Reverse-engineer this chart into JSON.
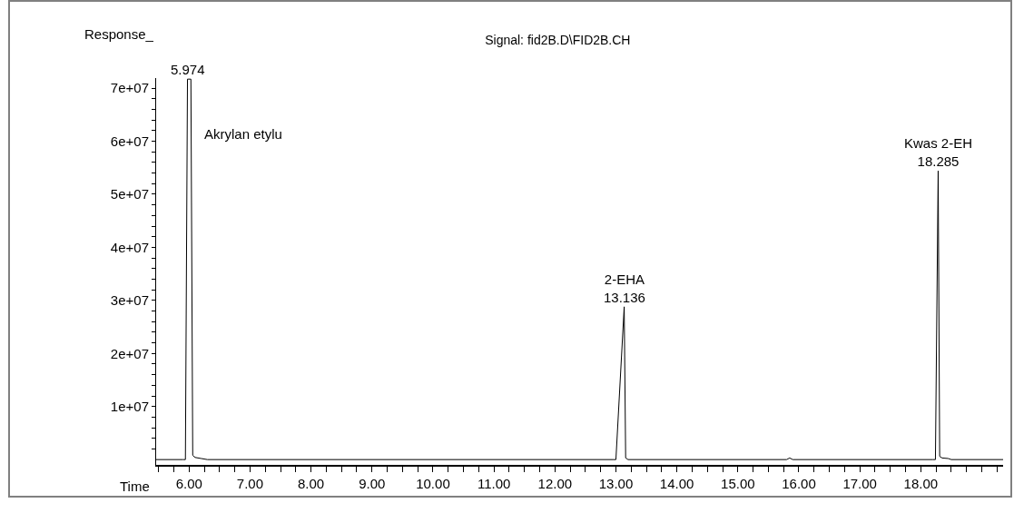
{
  "chart_data": {
    "type": "line",
    "title": "Signal: fid2B.D\\FID2B.CH",
    "ylabel": "Response_",
    "xlabel": "Time",
    "series": [
      {
        "color": "#000000",
        "x": [
          5.46,
          5.9,
          5.94,
          5.974,
          6.03,
          6.06,
          6.1,
          6.2,
          6.3,
          12.95,
          13.0,
          13.136,
          13.16,
          13.2,
          15.8,
          15.85,
          15.9,
          18.2,
          18.24,
          18.285,
          18.31,
          18.35,
          18.45,
          18.5,
          19.35
        ],
        "values": [
          0,
          0,
          0,
          71700000,
          71700000,
          800000,
          400000,
          200000,
          0,
          0,
          0,
          28800000,
          300000,
          0,
          0,
          300000,
          0,
          0,
          0,
          54400000,
          600000,
          300000,
          200000,
          0,
          0
        ]
      }
    ],
    "annotations": [
      {
        "text": "5.974",
        "x": 5.974,
        "y": 71700000
      },
      "Akrylan etylu",
      {
        "text": "2-EHA\n13.136",
        "x": 13.136,
        "y": 28800000
      },
      {
        "text": "Kwas 2-EH\n18.285",
        "x": 18.285,
        "y": 54400000
      }
    ],
    "xlim": [
      5.46,
      19.35
    ],
    "ylim": [
      -1000000,
      71900000
    ],
    "xticks": [
      {
        "value": 5.5,
        "label": null
      },
      {
        "value": 5.75,
        "label": null
      },
      {
        "value": 6,
        "label": "6.00"
      },
      {
        "value": 6.25,
        "label": null
      },
      {
        "value": 6.5,
        "label": null
      },
      {
        "value": 6.75,
        "label": null
      },
      {
        "value": 7,
        "label": "7.00"
      },
      {
        "value": 7.25,
        "label": null
      },
      {
        "value": 7.5,
        "label": null
      },
      {
        "value": 7.75,
        "label": null
      },
      {
        "value": 8,
        "label": "8.00"
      },
      {
        "value": 8.25,
        "label": null
      },
      {
        "value": 8.5,
        "label": null
      },
      {
        "value": 8.75,
        "label": null
      },
      {
        "value": 9,
        "label": "9.00"
      },
      {
        "value": 9.25,
        "label": null
      },
      {
        "value": 9.5,
        "label": null
      },
      {
        "value": 9.75,
        "label": null
      },
      {
        "value": 10,
        "label": "10.00"
      },
      {
        "value": 10.25,
        "label": null
      },
      {
        "value": 10.5,
        "label": null
      },
      {
        "value": 10.75,
        "label": null
      },
      {
        "value": 11,
        "label": "11.00"
      },
      {
        "value": 11.25,
        "label": null
      },
      {
        "value": 11.5,
        "label": null
      },
      {
        "value": 11.75,
        "label": null
      },
      {
        "value": 12,
        "label": "12.00"
      },
      {
        "value": 12.25,
        "label": null
      },
      {
        "value": 12.5,
        "label": null
      },
      {
        "value": 12.75,
        "label": null
      },
      {
        "value": 13,
        "label": "13.00"
      },
      {
        "value": 13.25,
        "label": null
      },
      {
        "value": 13.5,
        "label": null
      },
      {
        "value": 13.75,
        "label": null
      },
      {
        "value": 14,
        "label": "14.00"
      },
      {
        "value": 14.25,
        "label": null
      },
      {
        "value": 14.5,
        "label": null
      },
      {
        "value": 14.75,
        "label": null
      },
      {
        "value": 15,
        "label": "15.00"
      },
      {
        "value": 15.25,
        "label": null
      },
      {
        "value": 15.5,
        "label": null
      },
      {
        "value": 15.75,
        "label": null
      },
      {
        "value": 16,
        "label": "16.00"
      },
      {
        "value": 16.25,
        "label": null
      },
      {
        "value": 16.5,
        "label": null
      },
      {
        "value": 16.75,
        "label": null
      },
      {
        "value": 17,
        "label": "17.00"
      },
      {
        "value": 17.25,
        "label": null
      },
      {
        "value": 17.5,
        "label": null
      },
      {
        "value": 17.75,
        "label": null
      },
      {
        "value": 18,
        "label": "18.00"
      },
      {
        "value": 18.25,
        "label": null
      },
      {
        "value": 18.5,
        "label": null
      },
      {
        "value": 18.75,
        "label": null
      },
      {
        "value": 19,
        "label": null
      },
      {
        "value": 19.25,
        "label": null
      }
    ],
    "yticks": [
      {
        "value": 2000000,
        "label": null
      },
      {
        "value": 4000000,
        "label": null
      },
      {
        "value": 6000000,
        "label": null
      },
      {
        "value": 8000000,
        "label": null
      },
      {
        "value": 10000000,
        "label": "1e+07"
      },
      {
        "value": 12000000,
        "label": null
      },
      {
        "value": 14000000,
        "label": null
      },
      {
        "value": 16000000,
        "label": null
      },
      {
        "value": 18000000,
        "label": null
      },
      {
        "value": 20000000,
        "label": "2e+07"
      },
      {
        "value": 22000000,
        "label": null
      },
      {
        "value": 24000000,
        "label": null
      },
      {
        "value": 26000000,
        "label": null
      },
      {
        "value": 28000000,
        "label": null
      },
      {
        "value": 30000000,
        "label": "3e+07"
      },
      {
        "value": 32000000,
        "label": null
      },
      {
        "value": 34000000,
        "label": null
      },
      {
        "value": 36000000,
        "label": null
      },
      {
        "value": 38000000,
        "label": null
      },
      {
        "value": 40000000,
        "label": "4e+07"
      },
      {
        "value": 42000000,
        "label": null
      },
      {
        "value": 44000000,
        "label": null
      },
      {
        "value": 46000000,
        "label": null
      },
      {
        "value": 48000000,
        "label": null
      },
      {
        "value": 50000000,
        "label": "5e+07"
      },
      {
        "value": 52000000,
        "label": null
      },
      {
        "value": 54000000,
        "label": null
      },
      {
        "value": 56000000,
        "label": null
      },
      {
        "value": 58000000,
        "label": null
      },
      {
        "value": 60000000,
        "label": "6e+07"
      },
      {
        "value": 62000000,
        "label": null
      },
      {
        "value": 64000000,
        "label": null
      },
      {
        "value": 66000000,
        "label": null
      },
      {
        "value": 68000000,
        "label": null
      },
      {
        "value": 70000000,
        "label": "7e+07"
      }
    ],
    "grid": false,
    "marker": "none",
    "line_style": "solid"
  }
}
